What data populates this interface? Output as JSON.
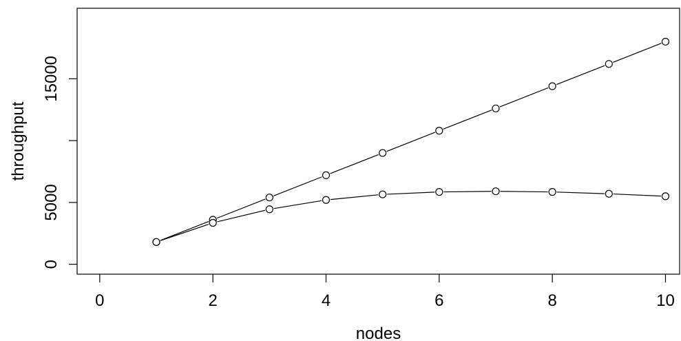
{
  "chart_data": {
    "type": "line",
    "title": "",
    "xlabel": "nodes",
    "ylabel": "throughput",
    "xlim": [
      -0.4,
      10.25
    ],
    "ylim": [
      -800,
      20700
    ],
    "x_ticks": [
      0,
      2,
      4,
      6,
      8,
      10
    ],
    "y_ticks": [
      0,
      5000,
      10000,
      15000
    ],
    "y_tick_labels": [
      "0",
      "5000",
      "",
      "15000"
    ],
    "grid": false,
    "legend": "none",
    "marker": "open-circle",
    "series": [
      {
        "x": [
          1,
          2,
          3,
          4,
          5,
          6,
          7,
          8,
          9,
          10
        ],
        "values": [
          1800,
          3600,
          5400,
          7200,
          9000,
          10800,
          12600,
          14400,
          16200,
          18000
        ]
      },
      {
        "x": [
          1,
          2,
          3,
          4,
          5,
          6,
          7,
          8,
          9,
          10
        ],
        "values": [
          1800,
          3350,
          4450,
          5200,
          5650,
          5850,
          5900,
          5850,
          5700,
          5500
        ]
      }
    ]
  }
}
